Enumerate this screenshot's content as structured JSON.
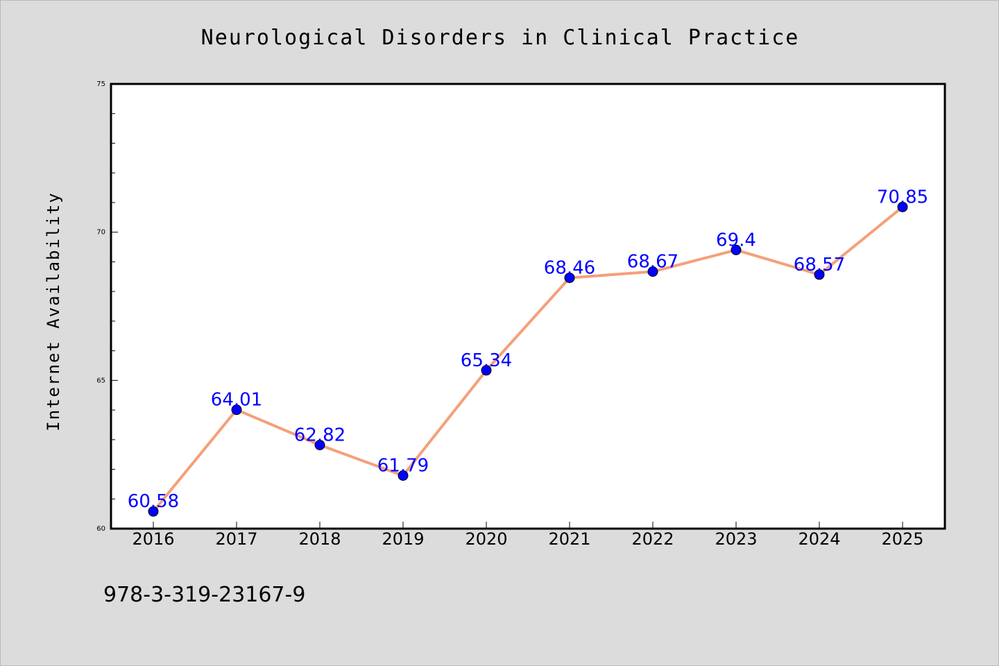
{
  "chart_data": {
    "type": "line",
    "title": "Neurological Disorders in Clinical Practice",
    "xlabel": "",
    "ylabel": "Internet Availability",
    "categories": [
      "2016",
      "2017",
      "2018",
      "2019",
      "2020",
      "2021",
      "2022",
      "2023",
      "2024",
      "2025"
    ],
    "series": [
      {
        "values": [
          60.58,
          64.01,
          62.82,
          61.79,
          65.34,
          68.46,
          68.67,
          69.4,
          68.57,
          70.85
        ]
      }
    ],
    "data_labels": [
      "60.58",
      "64.01",
      "62.82",
      "61.79",
      "65.34",
      "68.46",
      "68.67",
      "69.4",
      "68.57",
      "70.85"
    ],
    "ylim": [
      60,
      75
    ],
    "yticks": [
      "60",
      "65",
      "70",
      "75"
    ],
    "grid": false,
    "legend": "none",
    "colors": {
      "line": "#f4a07a",
      "marker": "#0000ff",
      "label": "#0000ff",
      "background": "#dcdcdc",
      "plot_area": "#ffffff"
    }
  },
  "footer": {
    "text": "978-3-319-23167-9"
  }
}
